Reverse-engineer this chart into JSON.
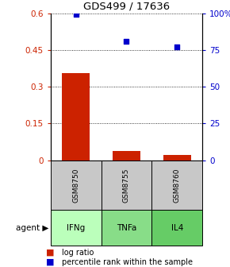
{
  "title": "GDS499 / 17636",
  "samples": [
    "GSM8750",
    "GSM8755",
    "GSM8760"
  ],
  "agents": [
    "IFNg",
    "TNFa",
    "IL4"
  ],
  "log_ratios": [
    0.355,
    0.038,
    0.022
  ],
  "percentile_ranks": [
    99.5,
    81.0,
    77.0
  ],
  "left_yticks": [
    0,
    0.15,
    0.3,
    0.45,
    0.6
  ],
  "right_yticks": [
    0,
    25,
    50,
    75,
    100
  ],
  "right_ytick_labels": [
    "0",
    "25",
    "50",
    "75",
    "100%"
  ],
  "bar_color": "#cc2200",
  "point_color": "#0000cc",
  "sample_bg": "#c8c8c8",
  "agent_colors": [
    "#bbffbb",
    "#88dd88",
    "#66cc66"
  ],
  "ylim": [
    0,
    0.6
  ],
  "ylim_right": [
    0,
    100
  ],
  "bar_width": 0.55
}
